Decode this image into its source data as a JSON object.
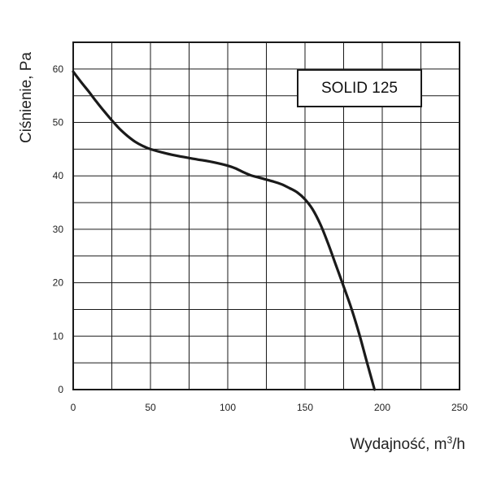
{
  "chart_data": {
    "type": "line",
    "title": "",
    "xlabel": "Wydajność, m",
    "xlabel_sup": "3",
    "xlabel_tail": "/h",
    "ylabel": "Ciśnienie, Pa",
    "xlim": [
      0,
      250
    ],
    "ylim": [
      0,
      65
    ],
    "x_ticks": [
      0,
      50,
      100,
      150,
      200,
      250
    ],
    "y_ticks": [
      0,
      10,
      20,
      30,
      40,
      50,
      60
    ],
    "x_grid_step": 25,
    "y_grid_step": 5,
    "grid": true,
    "legend_box": "SOLID 125",
    "legend_placement": "top-right",
    "series": [
      {
        "x": [
          0,
          5,
          10,
          15,
          20,
          25,
          30,
          35,
          40,
          45,
          50,
          60,
          70,
          80,
          90,
          100,
          105,
          110,
          115,
          120,
          125,
          130,
          135,
          140,
          145,
          150,
          155,
          160,
          165,
          170,
          175,
          180,
          185,
          190,
          195
        ],
        "y": [
          59.5,
          57.6,
          55.8,
          53.9,
          52.1,
          50.4,
          48.8,
          47.5,
          46.4,
          45.6,
          45.0,
          44.2,
          43.6,
          43.1,
          42.6,
          41.9,
          41.4,
          40.7,
          40.1,
          39.7,
          39.3,
          38.9,
          38.4,
          37.7,
          36.9,
          35.6,
          33.7,
          30.9,
          27.3,
          23.3,
          19.3,
          15.2,
          10.5,
          5.2,
          0
        ]
      }
    ],
    "line_color": "#1a1a1a",
    "grid_color": "#1a1a1a"
  }
}
